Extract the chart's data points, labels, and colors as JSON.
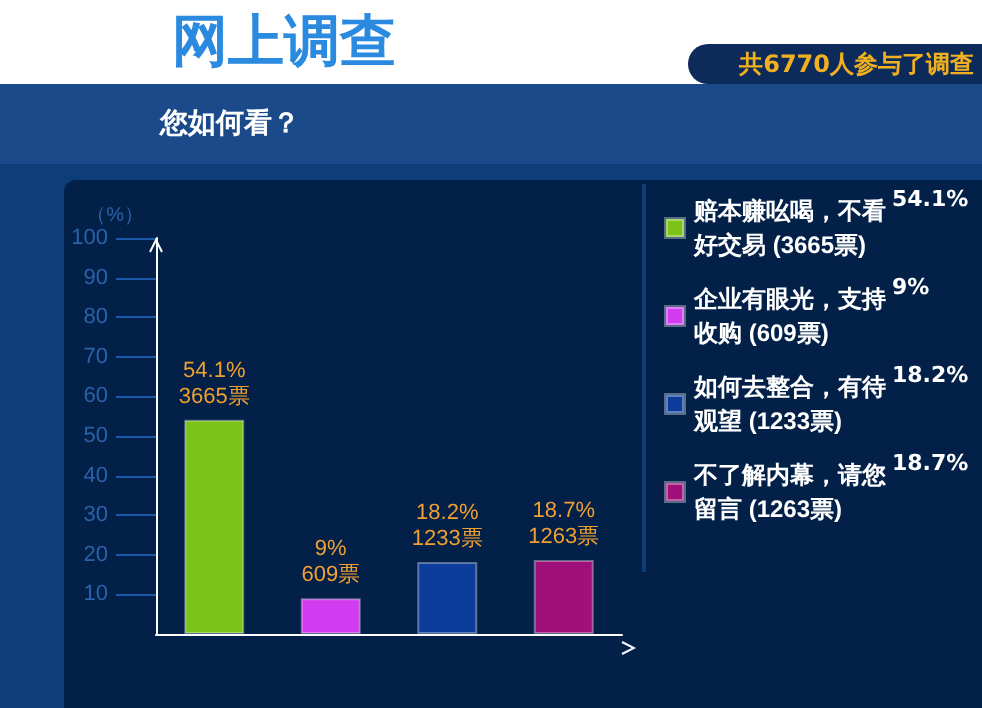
{
  "chart_data": {
    "type": "bar",
    "title": "网上调查",
    "subtitle": "您如何看？",
    "ylabel": "（%）",
    "annotations": [
      "共6770人参与了调查",
      "54.1%",
      "9%",
      "18.2%",
      "18.7%"
    ],
    "categories": [
      null,
      null,
      null,
      null
    ],
    "series": [
      {
        "name": "赔本赚吆喝，不看好交易 (3665票)",
        "color": "#7cc41a",
        "values": [
          54.1,
          null,
          null,
          null
        ],
        "value_labels": [
          "54.1%\n3665票",
          null,
          null,
          null
        ]
      },
      {
        "name": "企业有眼光，支持收购 (609票)",
        "color": "#d23cf0",
        "values": [
          null,
          9,
          null,
          null
        ],
        "value_labels": [
          null,
          "9%\n609票",
          null,
          null
        ]
      },
      {
        "name": "如何去整合，有待观望 (1233票)",
        "color": "#0c3c9c",
        "values": [
          null,
          null,
          18.2,
          null
        ],
        "value_labels": [
          null,
          null,
          "18.2%\n1233票",
          null
        ]
      },
      {
        "name": "不了解内幕，请您留言 (1263票)",
        "color": "#a0107a",
        "values": [
          null,
          null,
          null,
          18.7
        ],
        "value_labels": [
          null,
          null,
          null,
          "18.7%\n1263票"
        ]
      }
    ],
    "ylim": [
      0,
      100
    ],
    "yticks": [
      10,
      20,
      30,
      40,
      50,
      60,
      70,
      80,
      90,
      100
    ],
    "grid": false,
    "legend": "right",
    "tick_labels": "y"
  }
}
